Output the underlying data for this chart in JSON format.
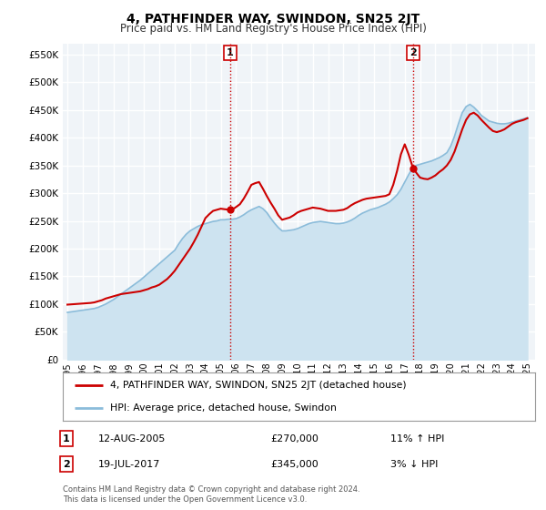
{
  "title": "4, PATHFINDER WAY, SWINDON, SN25 2JT",
  "subtitle": "Price paid vs. HM Land Registry's House Price Index (HPI)",
  "xlim": [
    1994.7,
    2025.5
  ],
  "ylim": [
    0,
    570000
  ],
  "yticks": [
    0,
    50000,
    100000,
    150000,
    200000,
    250000,
    300000,
    350000,
    400000,
    450000,
    500000,
    550000
  ],
  "ytick_labels": [
    "£0",
    "£50K",
    "£100K",
    "£150K",
    "£200K",
    "£250K",
    "£300K",
    "£350K",
    "£400K",
    "£450K",
    "£500K",
    "£550K"
  ],
  "xticks": [
    1995,
    1996,
    1997,
    1998,
    1999,
    2000,
    2001,
    2002,
    2003,
    2004,
    2005,
    2006,
    2007,
    2008,
    2009,
    2010,
    2011,
    2012,
    2013,
    2014,
    2015,
    2016,
    2017,
    2018,
    2019,
    2020,
    2021,
    2022,
    2023,
    2024,
    2025
  ],
  "sale1_x": 2005.617,
  "sale1_y": 270000,
  "sale1_label": "1",
  "sale1_date": "12-AUG-2005",
  "sale1_price": "£270,000",
  "sale1_hpi": "11% ↑ HPI",
  "sale2_x": 2017.542,
  "sale2_y": 345000,
  "sale2_label": "2",
  "sale2_date": "19-JUL-2017",
  "sale2_price": "£345,000",
  "sale2_hpi": "3% ↓ HPI",
  "red_line_color": "#cc0000",
  "blue_line_color": "#8bbcda",
  "blue_fill_color": "#cde3f0",
  "background_color": "#ffffff",
  "plot_bg_color": "#f0f4f8",
  "grid_color": "#ffffff",
  "legend_label_red": "4, PATHFINDER WAY, SWINDON, SN25 2JT (detached house)",
  "legend_label_blue": "HPI: Average price, detached house, Swindon",
  "footer": "Contains HM Land Registry data © Crown copyright and database right 2024.\nThis data is licensed under the Open Government Licence v3.0.",
  "red_x": [
    1995.0,
    1995.25,
    1995.5,
    1995.75,
    1996.0,
    1996.25,
    1996.5,
    1996.75,
    1997.0,
    1997.25,
    1997.5,
    1997.75,
    1998.0,
    1998.25,
    1998.5,
    1998.75,
    1999.0,
    1999.25,
    1999.5,
    1999.75,
    2000.0,
    2000.25,
    2000.5,
    2000.75,
    2001.0,
    2001.25,
    2001.5,
    2001.75,
    2002.0,
    2002.25,
    2002.5,
    2002.75,
    2003.0,
    2003.25,
    2003.5,
    2003.75,
    2004.0,
    2004.25,
    2004.5,
    2004.75,
    2005.0,
    2005.25,
    2005.617,
    2005.9,
    2006.0,
    2006.25,
    2006.5,
    2006.75,
    2007.0,
    2007.25,
    2007.5,
    2007.75,
    2008.0,
    2008.25,
    2008.5,
    2008.75,
    2009.0,
    2009.25,
    2009.5,
    2009.75,
    2010.0,
    2010.25,
    2010.5,
    2010.75,
    2011.0,
    2011.25,
    2011.5,
    2011.75,
    2012.0,
    2012.25,
    2012.5,
    2012.75,
    2013.0,
    2013.25,
    2013.5,
    2013.75,
    2014.0,
    2014.25,
    2014.5,
    2014.75,
    2015.0,
    2015.25,
    2015.5,
    2015.75,
    2016.0,
    2016.25,
    2016.5,
    2016.75,
    2017.0,
    2017.25,
    2017.542,
    2017.8,
    2018.0,
    2018.25,
    2018.5,
    2018.75,
    2019.0,
    2019.25,
    2019.5,
    2019.75,
    2020.0,
    2020.25,
    2020.5,
    2020.75,
    2021.0,
    2021.25,
    2021.5,
    2021.75,
    2022.0,
    2022.25,
    2022.5,
    2022.75,
    2023.0,
    2023.25,
    2023.5,
    2023.75,
    2024.0,
    2024.25,
    2024.5,
    2024.75,
    2025.0
  ],
  "red_y": [
    99000,
    99500,
    100000,
    100500,
    101000,
    101500,
    102000,
    103000,
    105000,
    107000,
    110000,
    112000,
    114000,
    116000,
    118000,
    119000,
    120000,
    121000,
    122000,
    123000,
    125000,
    127000,
    130000,
    132000,
    135000,
    140000,
    145000,
    152000,
    160000,
    170000,
    180000,
    190000,
    200000,
    212000,
    225000,
    240000,
    255000,
    262000,
    268000,
    270000,
    272000,
    271000,
    270000,
    273000,
    275000,
    280000,
    290000,
    302000,
    315000,
    318000,
    320000,
    308000,
    295000,
    283000,
    272000,
    260000,
    252000,
    254000,
    256000,
    260000,
    265000,
    268000,
    270000,
    272000,
    274000,
    273000,
    272000,
    270000,
    268000,
    268000,
    268000,
    269000,
    270000,
    273000,
    278000,
    282000,
    285000,
    288000,
    290000,
    291000,
    292000,
    293000,
    294000,
    295000,
    298000,
    315000,
    340000,
    370000,
    388000,
    370000,
    345000,
    335000,
    328000,
    326000,
    325000,
    328000,
    332000,
    338000,
    343000,
    350000,
    360000,
    375000,
    395000,
    415000,
    432000,
    442000,
    445000,
    440000,
    432000,
    425000,
    418000,
    412000,
    410000,
    412000,
    415000,
    420000,
    425000,
    428000,
    430000,
    432000,
    435000
  ],
  "blue_x": [
    1995.0,
    1995.25,
    1995.5,
    1995.75,
    1996.0,
    1996.25,
    1996.5,
    1996.75,
    1997.0,
    1997.25,
    1997.5,
    1997.75,
    1998.0,
    1998.25,
    1998.5,
    1998.75,
    1999.0,
    1999.25,
    1999.5,
    1999.75,
    2000.0,
    2000.25,
    2000.5,
    2000.75,
    2001.0,
    2001.25,
    2001.5,
    2001.75,
    2002.0,
    2002.25,
    2002.5,
    2002.75,
    2003.0,
    2003.25,
    2003.5,
    2003.75,
    2004.0,
    2004.25,
    2004.5,
    2004.75,
    2005.0,
    2005.25,
    2005.5,
    2005.75,
    2006.0,
    2006.25,
    2006.5,
    2006.75,
    2007.0,
    2007.25,
    2007.5,
    2007.75,
    2008.0,
    2008.25,
    2008.5,
    2008.75,
    2009.0,
    2009.25,
    2009.5,
    2009.75,
    2010.0,
    2010.25,
    2010.5,
    2010.75,
    2011.0,
    2011.25,
    2011.5,
    2011.75,
    2012.0,
    2012.25,
    2012.5,
    2012.75,
    2013.0,
    2013.25,
    2013.5,
    2013.75,
    2014.0,
    2014.25,
    2014.5,
    2014.75,
    2015.0,
    2015.25,
    2015.5,
    2015.75,
    2016.0,
    2016.25,
    2016.5,
    2016.75,
    2017.0,
    2017.25,
    2017.5,
    2017.75,
    2018.0,
    2018.25,
    2018.5,
    2018.75,
    2019.0,
    2019.25,
    2019.5,
    2019.75,
    2020.0,
    2020.25,
    2020.5,
    2020.75,
    2021.0,
    2021.25,
    2021.5,
    2021.75,
    2022.0,
    2022.25,
    2022.5,
    2022.75,
    2023.0,
    2023.25,
    2023.5,
    2023.75,
    2024.0,
    2024.25,
    2024.5,
    2024.75,
    2025.0
  ],
  "blue_y": [
    85000,
    86000,
    87000,
    88000,
    89000,
    90000,
    91000,
    92000,
    94000,
    97000,
    100000,
    104000,
    108000,
    113000,
    118000,
    123000,
    128000,
    133000,
    138000,
    143000,
    149000,
    155000,
    161000,
    167000,
    173000,
    179000,
    185000,
    191000,
    197000,
    208000,
    218000,
    226000,
    232000,
    236000,
    240000,
    243000,
    245000,
    247000,
    249000,
    250000,
    252000,
    252000,
    253000,
    253000,
    254000,
    257000,
    261000,
    266000,
    270000,
    273000,
    276000,
    272000,
    265000,
    255000,
    246000,
    238000,
    232000,
    232000,
    233000,
    234000,
    236000,
    239000,
    242000,
    245000,
    247000,
    248000,
    249000,
    248000,
    247000,
    246000,
    245000,
    245000,
    246000,
    248000,
    251000,
    255000,
    260000,
    264000,
    267000,
    270000,
    272000,
    274000,
    277000,
    280000,
    284000,
    290000,
    297000,
    307000,
    320000,
    333000,
    345000,
    350000,
    352000,
    354000,
    356000,
    358000,
    361000,
    364000,
    368000,
    373000,
    385000,
    403000,
    425000,
    445000,
    456000,
    460000,
    455000,
    448000,
    440000,
    435000,
    430000,
    428000,
    426000,
    425000,
    425000,
    426000,
    428000,
    430000,
    432000,
    434000,
    436000
  ],
  "title_fontsize": 10,
  "subtitle_fontsize": 8.5
}
